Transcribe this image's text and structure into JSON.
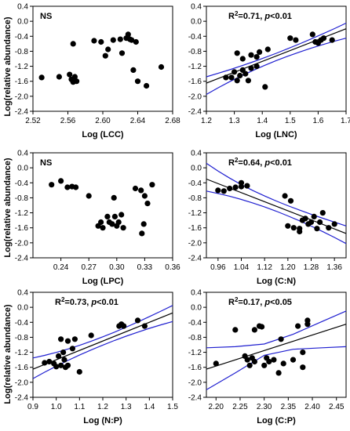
{
  "ylabel": "Log(relative abundance)",
  "colors": {
    "fit": "#000000",
    "ci": "#1f1fd0",
    "point": "#000000"
  },
  "chart_data": [
    {
      "type": "scatter",
      "xlabel": "Log (LCC)",
      "annotation": {
        "r2": "",
        "p": "",
        "plain": "NS"
      },
      "xlim": [
        2.52,
        2.68
      ],
      "xticks": [
        2.52,
        2.56,
        2.6,
        2.64,
        2.68
      ],
      "xtick_labels": [
        "2.52",
        "2.56",
        "2.60",
        "2.64",
        "2.68"
      ],
      "ylim": [
        -2.4,
        0.4
      ],
      "yticks": [
        -2.4,
        -2.0,
        -1.6,
        -1.2,
        -0.8,
        -0.4,
        0.0,
        0.4
      ],
      "ytick_labels": [
        "-2.4",
        "-2.0",
        "-1.6",
        "-1.2",
        "-0.8",
        "-0.4",
        "0.0",
        "0.4"
      ],
      "fit": null,
      "points": [
        [
          2.53,
          -1.5
        ],
        [
          2.55,
          -1.48
        ],
        [
          2.562,
          -1.42
        ],
        [
          2.564,
          -1.55
        ],
        [
          2.566,
          -1.62
        ],
        [
          2.568,
          -1.48
        ],
        [
          2.57,
          -1.6
        ],
        [
          2.566,
          -0.6
        ],
        [
          2.59,
          -0.52
        ],
        [
          2.598,
          -0.55
        ],
        [
          2.603,
          -0.92
        ],
        [
          2.606,
          -0.75
        ],
        [
          2.612,
          -0.5
        ],
        [
          2.62,
          -0.48
        ],
        [
          2.622,
          -0.85
        ],
        [
          2.627,
          -0.45
        ],
        [
          2.629,
          -0.35
        ],
        [
          2.631,
          -0.48
        ],
        [
          2.633,
          -0.5
        ],
        [
          2.635,
          -1.3
        ],
        [
          2.638,
          -0.55
        ],
        [
          2.64,
          -1.6
        ],
        [
          2.65,
          -1.72
        ],
        [
          2.667,
          -1.22
        ]
      ]
    },
    {
      "type": "scatter",
      "xlabel": "Log (LNC)",
      "annotation": {
        "r2": "R2=0.71,",
        "p": "p<0.01",
        "plain": ""
      },
      "xlim": [
        1.2,
        1.7
      ],
      "xticks": [
        1.2,
        1.3,
        1.4,
        1.5,
        1.6,
        1.7
      ],
      "xtick_labels": [
        "1.2",
        "1.3",
        "1.4",
        "1.5",
        "1.6",
        "1.7"
      ],
      "ylim": [
        -2.4,
        0.4
      ],
      "yticks": [
        -2.4,
        -2.0,
        -1.6,
        -1.2,
        -0.8,
        -0.4,
        0.0,
        0.4
      ],
      "ytick_labels": [
        "-2.4",
        "-2.0",
        "-1.6",
        "-1.2",
        "-0.8",
        "-0.4",
        "0.0",
        "0.4"
      ],
      "fit": {
        "x": [
          1.2,
          1.7
        ],
        "y": [
          -1.65,
          -0.2
        ],
        "ci_upper": [
          -1.48,
          -0.05
        ],
        "ci_lower": [
          -1.95,
          -0.45
        ]
      },
      "points": [
        [
          1.27,
          -1.5
        ],
        [
          1.29,
          -1.5
        ],
        [
          1.3,
          -1.35
        ],
        [
          1.31,
          -1.58
        ],
        [
          1.32,
          -1.45
        ],
        [
          1.33,
          -1.3
        ],
        [
          1.34,
          -1.4
        ],
        [
          1.35,
          -1.58
        ],
        [
          1.36,
          -1.25
        ],
        [
          1.38,
          -1.2
        ],
        [
          1.31,
          -0.85
        ],
        [
          1.33,
          -1.0
        ],
        [
          1.36,
          -0.9
        ],
        [
          1.38,
          -0.95
        ],
        [
          1.39,
          -0.82
        ],
        [
          1.41,
          -1.75
        ],
        [
          1.42,
          -0.75
        ],
        [
          1.5,
          -0.45
        ],
        [
          1.52,
          -0.5
        ],
        [
          1.58,
          -0.35
        ],
        [
          1.59,
          -0.55
        ],
        [
          1.6,
          -0.58
        ],
        [
          1.61,
          -0.5
        ],
        [
          1.62,
          -0.45
        ],
        [
          1.65,
          -0.5
        ]
      ]
    },
    {
      "type": "scatter",
      "xlabel": "Log (LPC)",
      "annotation": {
        "r2": "",
        "p": "",
        "plain": "NS"
      },
      "xlim": [
        0.21,
        0.36
      ],
      "xticks": [
        0.24,
        0.27,
        0.3,
        0.33,
        0.36
      ],
      "xtick_labels": [
        "0.24",
        "0.27",
        "0.30",
        "0.33",
        "0.36"
      ],
      "ylim": [
        -2.4,
        0.4
      ],
      "yticks": [
        -2.4,
        -2.0,
        -1.6,
        -1.2,
        -0.8,
        -0.4,
        0.0,
        0.4
      ],
      "ytick_labels": [
        "-2.4",
        "-2.0",
        "-1.6",
        "-1.2",
        "-0.8",
        "-0.4",
        "0.0",
        "0.4"
      ],
      "fit": null,
      "points": [
        [
          0.23,
          -0.45
        ],
        [
          0.24,
          -0.35
        ],
        [
          0.247,
          -0.52
        ],
        [
          0.252,
          -0.5
        ],
        [
          0.256,
          -0.52
        ],
        [
          0.27,
          -0.75
        ],
        [
          0.28,
          -1.55
        ],
        [
          0.283,
          -1.45
        ],
        [
          0.285,
          -1.6
        ],
        [
          0.29,
          -1.3
        ],
        [
          0.292,
          -1.45
        ],
        [
          0.295,
          -1.5
        ],
        [
          0.298,
          -1.3
        ],
        [
          0.297,
          -0.8
        ],
        [
          0.3,
          -1.55
        ],
        [
          0.302,
          -1.45
        ],
        [
          0.305,
          -1.25
        ],
        [
          0.307,
          -1.6
        ],
        [
          0.32,
          -0.55
        ],
        [
          0.326,
          -0.6
        ],
        [
          0.327,
          -1.75
        ],
        [
          0.329,
          -1.5
        ],
        [
          0.33,
          -0.75
        ],
        [
          0.333,
          -0.95
        ],
        [
          0.338,
          -0.45
        ]
      ]
    },
    {
      "type": "scatter",
      "xlabel": "Log (C:N)",
      "annotation": {
        "r2": "R2=0.64,",
        "p": "p<0.01",
        "plain": ""
      },
      "xlim": [
        0.92,
        1.4
      ],
      "xticks": [
        0.96,
        1.04,
        1.12,
        1.2,
        1.28,
        1.36
      ],
      "xtick_labels": [
        "0.96",
        "1.04",
        "1.12",
        "1.20",
        "1.28",
        "1.36"
      ],
      "ylim": [
        -2.4,
        0.4
      ],
      "yticks": [
        -2.4,
        -2.0,
        -1.6,
        -1.2,
        -0.8,
        -0.4,
        0.0,
        0.4
      ],
      "ytick_labels": [
        "-2.4",
        "-2.0",
        "-1.6",
        "-1.2",
        "-0.8",
        "-0.4",
        "0.0",
        "0.4"
      ],
      "fit": {
        "x": [
          0.92,
          1.4
        ],
        "y": [
          -0.3,
          -1.75
        ],
        "ci_upper": [
          0.12,
          -1.55
        ],
        "ci_lower": [
          -0.62,
          -2.02
        ]
      },
      "points": [
        [
          0.96,
          -0.6
        ],
        [
          0.98,
          -0.62
        ],
        [
          1.0,
          -0.55
        ],
        [
          1.02,
          -0.52
        ],
        [
          1.04,
          -0.5
        ],
        [
          1.06,
          -0.48
        ],
        [
          1.04,
          -0.4
        ],
        [
          1.19,
          -0.75
        ],
        [
          1.21,
          -0.88
        ],
        [
          1.2,
          -1.55
        ],
        [
          1.22,
          -1.6
        ],
        [
          1.24,
          -1.7
        ],
        [
          1.25,
          -1.4
        ],
        [
          1.26,
          -1.35
        ],
        [
          1.27,
          -1.5
        ],
        [
          1.28,
          -1.45
        ],
        [
          1.29,
          -1.3
        ],
        [
          1.3,
          -1.62
        ],
        [
          1.31,
          -1.45
        ],
        [
          1.32,
          -1.2
        ],
        [
          1.34,
          -1.6
        ],
        [
          1.36,
          -1.5
        ],
        [
          1.24,
          -1.62
        ]
      ]
    },
    {
      "type": "scatter",
      "xlabel": "Log (N:P)",
      "annotation": {
        "r2": "R2=0.73,",
        "p": "p<0.01",
        "plain": ""
      },
      "xlim": [
        0.9,
        1.5
      ],
      "xticks": [
        0.9,
        1.0,
        1.1,
        1.2,
        1.3,
        1.4,
        1.5
      ],
      "xtick_labels": [
        "0.9",
        "1.0",
        "1.1",
        "1.2",
        "1.3",
        "1.4",
        "1.5"
      ],
      "ylim": [
        -2.4,
        0.4
      ],
      "yticks": [
        -2.4,
        -2.0,
        -1.6,
        -1.2,
        -0.8,
        -0.4,
        0.0,
        0.4
      ],
      "ytick_labels": [
        "-2.4",
        "-2.0",
        "-1.6",
        "-1.2",
        "-0.8",
        "-0.4",
        "0.0",
        "0.4"
      ],
      "fit": {
        "x": [
          0.9,
          1.5
        ],
        "y": [
          -1.65,
          -0.15
        ],
        "ci_upper": [
          -1.35,
          0.05
        ],
        "ci_lower": [
          -1.9,
          -0.38
        ]
      },
      "points": [
        [
          0.95,
          -1.48
        ],
        [
          0.97,
          -1.45
        ],
        [
          0.99,
          -1.5
        ],
        [
          1.0,
          -1.58
        ],
        [
          1.01,
          -1.3
        ],
        [
          1.02,
          -1.55
        ],
        [
          1.03,
          -1.2
        ],
        [
          1.035,
          -1.4
        ],
        [
          1.04,
          -1.6
        ],
        [
          1.05,
          -1.55
        ],
        [
          1.02,
          -0.85
        ],
        [
          1.05,
          -0.9
        ],
        [
          1.07,
          -1.1
        ],
        [
          1.08,
          -0.85
        ],
        [
          1.1,
          -1.72
        ],
        [
          1.15,
          -0.75
        ],
        [
          1.27,
          -0.5
        ],
        [
          1.28,
          -0.45
        ],
        [
          1.29,
          -0.5
        ],
        [
          1.35,
          -0.35
        ],
        [
          1.38,
          -0.5
        ]
      ]
    },
    {
      "type": "scatter",
      "xlabel": "Log (C:P)",
      "annotation": {
        "r2": "R2=0.17,",
        "p": "p<0.05",
        "plain": ""
      },
      "xlim": [
        2.18,
        2.47
      ],
      "xticks": [
        2.2,
        2.25,
        2.3,
        2.35,
        2.4,
        2.45
      ],
      "xtick_labels": [
        "2.20",
        "2.25",
        "2.30",
        "2.35",
        "2.40",
        "2.45"
      ],
      "ylim": [
        -2.4,
        0.4
      ],
      "yticks": [
        -2.4,
        -2.0,
        -1.6,
        -1.2,
        -0.8,
        -0.4,
        0.0,
        0.4
      ],
      "ytick_labels": [
        "-2.4",
        "-2.0",
        "-1.6",
        "-1.2",
        "-0.8",
        "-0.4",
        "0.0",
        "0.4"
      ],
      "fit": {
        "x": [
          2.18,
          2.47
        ],
        "y": [
          -1.65,
          -0.45
        ],
        "ci_lower_curve": [
          [
            2.18,
            -2.2
          ],
          [
            2.24,
            -1.75
          ],
          [
            2.3,
            -1.28
          ],
          [
            2.36,
            -1.12
          ],
          [
            2.42,
            -1.08
          ],
          [
            2.47,
            -1.05
          ]
        ],
        "ci_upper_curve": [
          [
            2.18,
            -1.08
          ],
          [
            2.24,
            -1.05
          ],
          [
            2.3,
            -0.98
          ],
          [
            2.36,
            -0.72
          ],
          [
            2.42,
            -0.38
          ],
          [
            2.47,
            -0.1
          ]
        ]
      },
      "points": [
        [
          2.2,
          -1.5
        ],
        [
          2.24,
          -0.6
        ],
        [
          2.26,
          -1.3
        ],
        [
          2.265,
          -1.4
        ],
        [
          2.27,
          -1.55
        ],
        [
          2.275,
          -1.35
        ],
        [
          2.28,
          -0.6
        ],
        [
          2.28,
          -1.45
        ],
        [
          2.29,
          -0.5
        ],
        [
          2.295,
          -0.52
        ],
        [
          2.3,
          -1.55
        ],
        [
          2.305,
          -1.35
        ],
        [
          2.31,
          -1.45
        ],
        [
          2.32,
          -1.4
        ],
        [
          2.33,
          -1.75
        ],
        [
          2.335,
          -0.85
        ],
        [
          2.34,
          -1.5
        ],
        [
          2.36,
          -1.4
        ],
        [
          2.37,
          -0.5
        ],
        [
          2.38,
          -1.2
        ],
        [
          2.39,
          -0.35
        ],
        [
          2.39,
          -0.45
        ],
        [
          2.38,
          -1.6
        ]
      ]
    }
  ]
}
